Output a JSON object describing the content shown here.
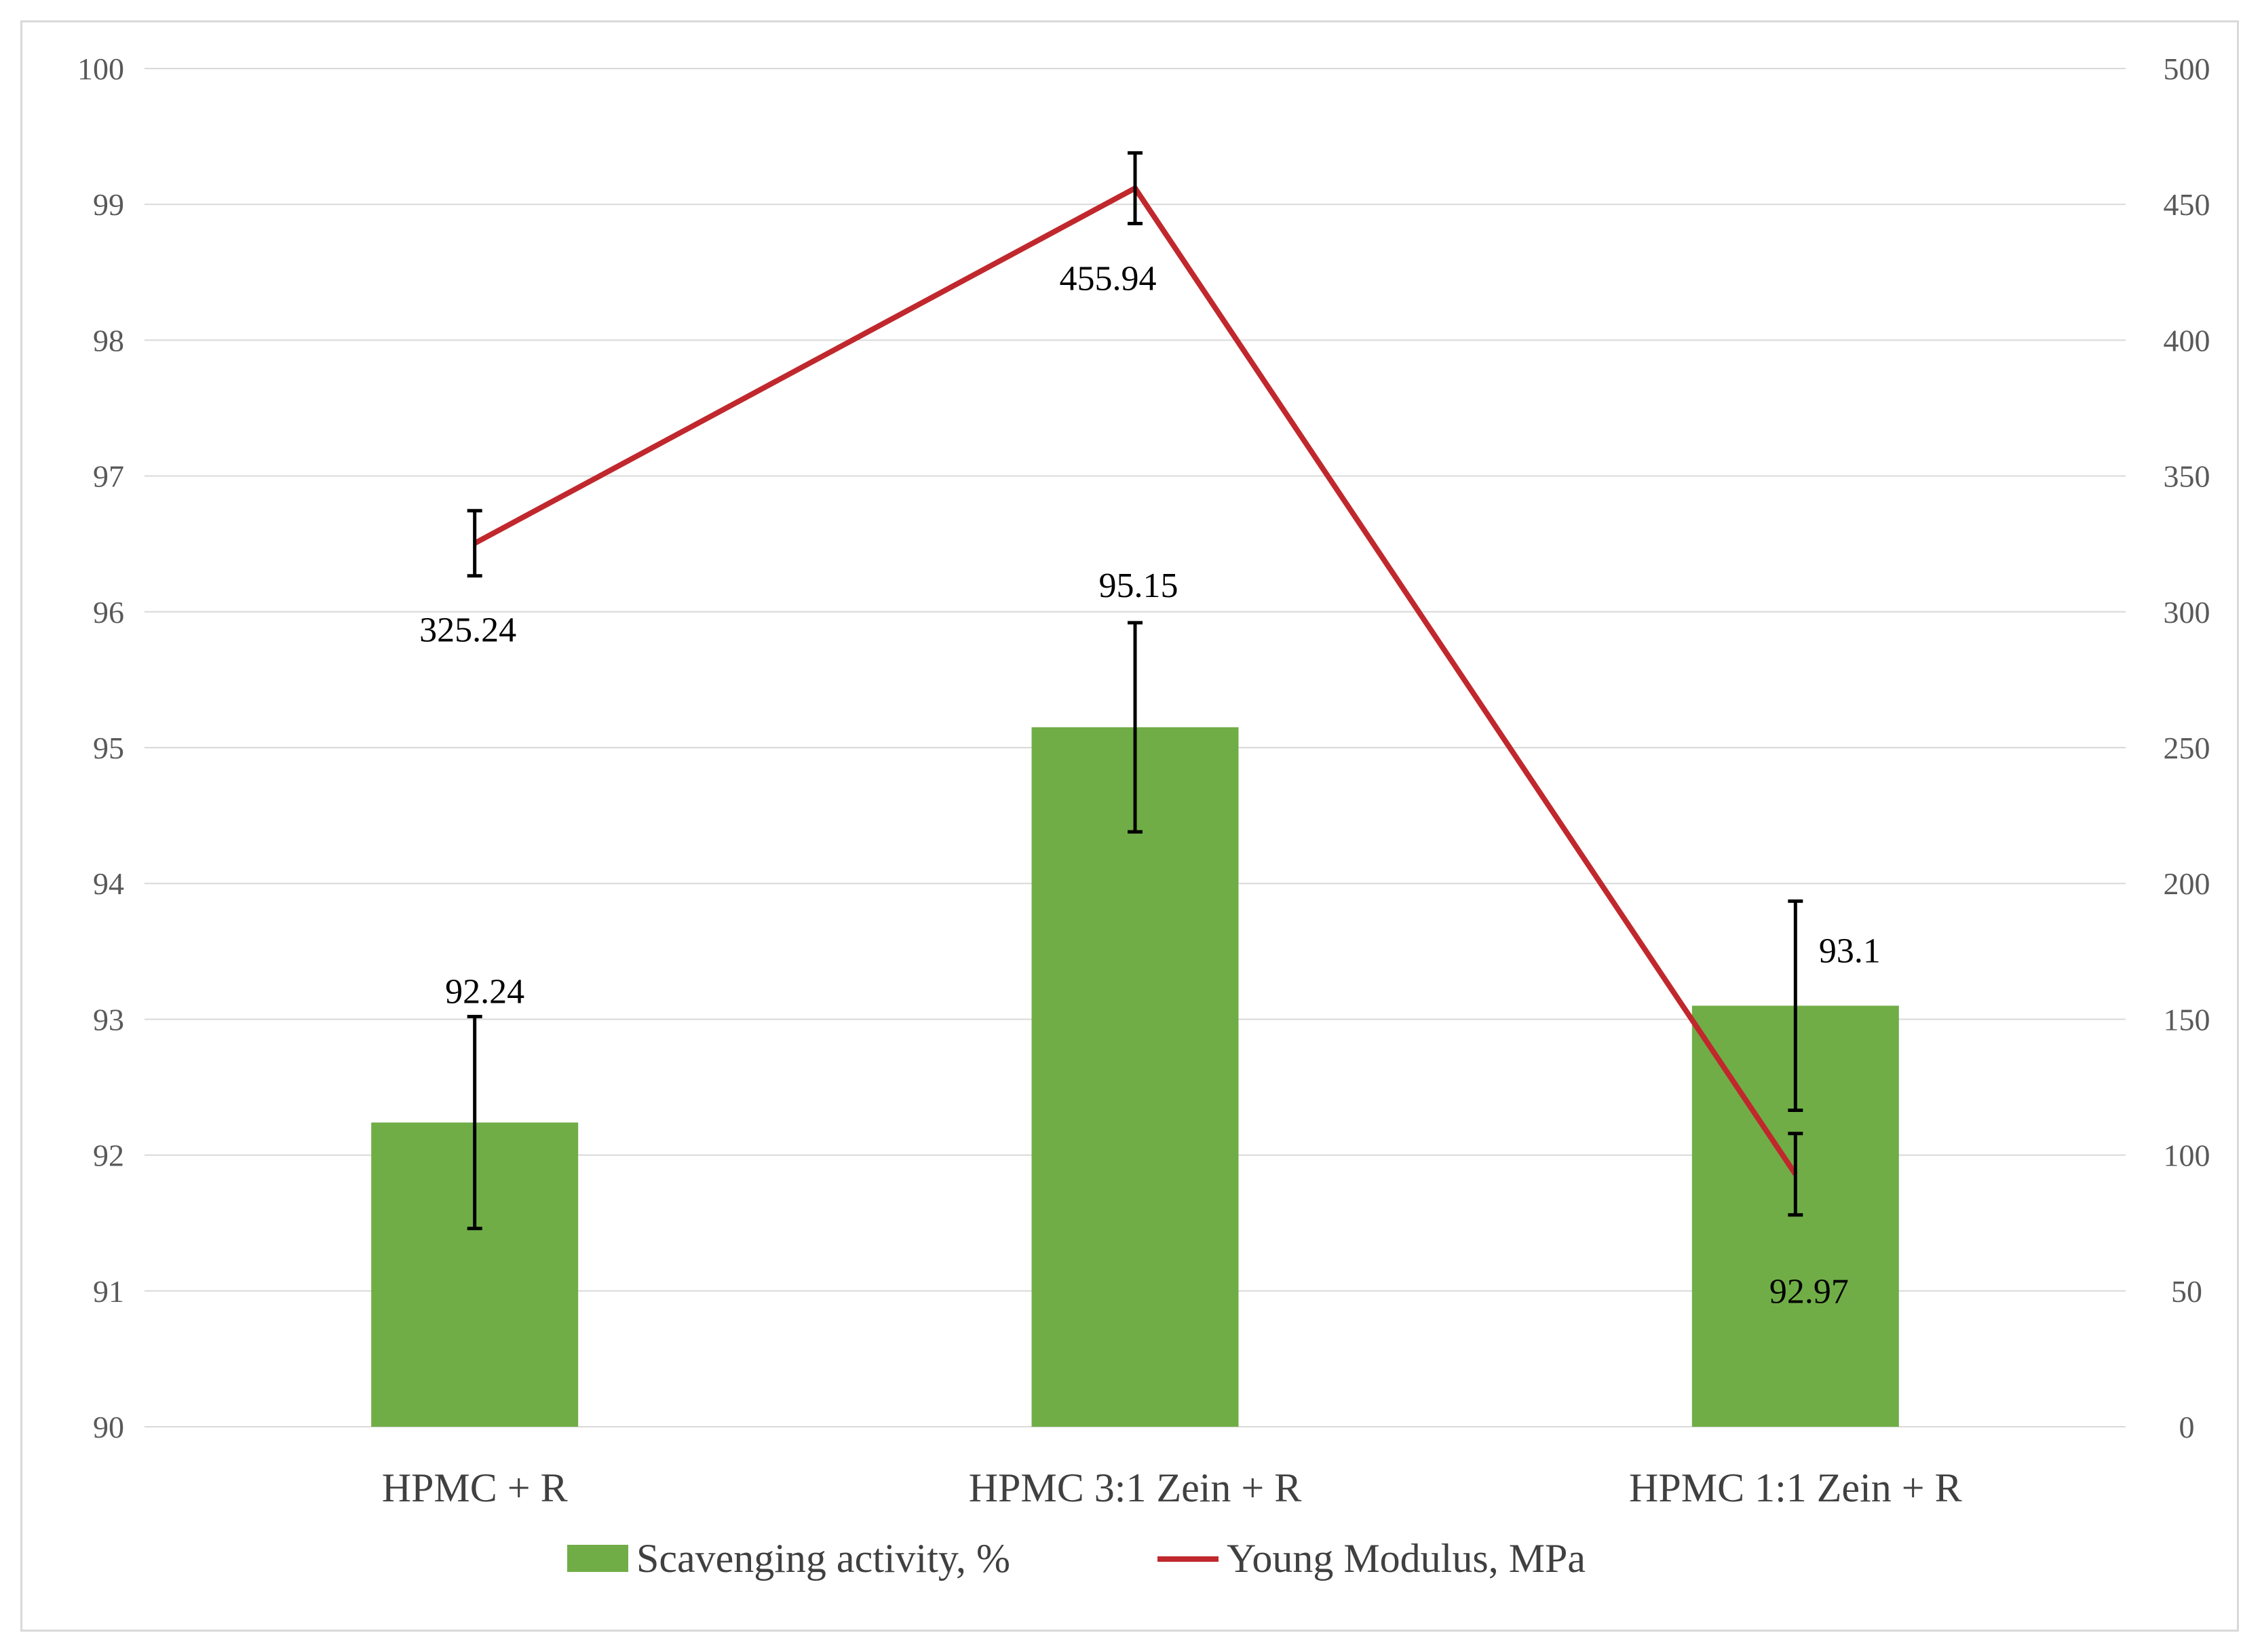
{
  "chart_data": {
    "type": "bar+line",
    "title": "",
    "categories": [
      "HPMC + R",
      "HPMC 3:1 Zein + R",
      "HPMC 1:1 Zein + R"
    ],
    "y_left": {
      "min": 90,
      "max": 100,
      "step": 1,
      "ticks": [
        "90",
        "91",
        "92",
        "93",
        "94",
        "95",
        "96",
        "97",
        "98",
        "99",
        "100"
      ]
    },
    "y_right": {
      "min": 0,
      "max": 500,
      "step": 50,
      "ticks": [
        "0",
        "50",
        "100",
        "150",
        "200",
        "250",
        "300",
        "350",
        "400",
        "450",
        "500"
      ]
    },
    "grid": true,
    "legend_position": "bottom",
    "series": [
      {
        "name": "Scavenging activity, %",
        "kind": "bar",
        "axis": "left",
        "color": "#70ad47",
        "values": [
          92.24,
          95.15,
          93.1
        ],
        "errors": [
          0.78,
          0.77,
          0.77
        ],
        "labels": [
          "92.24",
          "95.15",
          "93.1"
        ]
      },
      {
        "name": "Young Modulus, MPa",
        "kind": "line",
        "axis": "right",
        "color": "#c0282d",
        "values": [
          325.24,
          455.94,
          92.97
        ],
        "errors": [
          12,
          13,
          15
        ],
        "labels": [
          "325.24",
          "455.94",
          "92.97"
        ]
      }
    ]
  }
}
